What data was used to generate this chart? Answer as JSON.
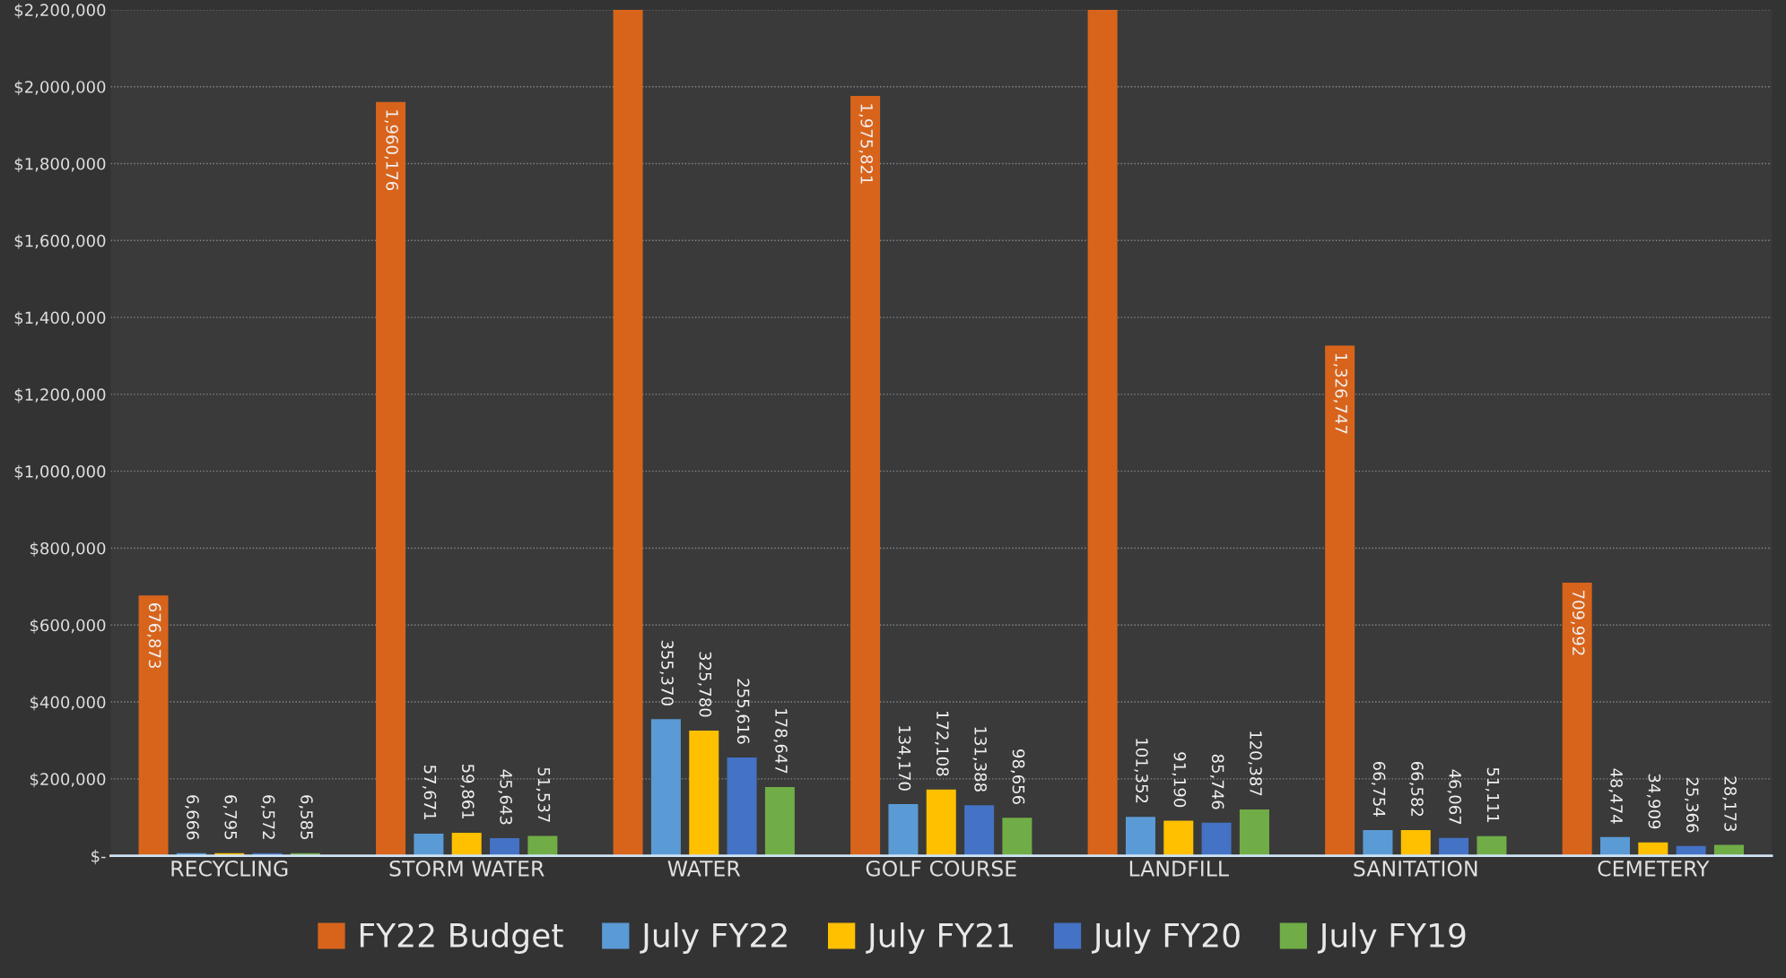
{
  "chart_data": {
    "type": "bar",
    "categories": [
      "RECYCLING",
      "STORM WATER",
      "WATER",
      "GOLF COURSE",
      "LANDFILL",
      "SANITATION",
      "CEMETERY"
    ],
    "series": [
      {
        "name": "FY22 Budget",
        "color": "#d8641c",
        "values": [
          676873,
          1960176,
          2200000,
          1975821,
          2200000,
          1326747,
          709992
        ],
        "value_labels": [
          "676,873",
          "1,960,176",
          null,
          "1,975,821",
          null,
          "1,326,747",
          "709,992"
        ]
      },
      {
        "name": "July FY22",
        "color": "#5b9bd5",
        "values": [
          6666,
          57671,
          355370,
          134170,
          101352,
          66754,
          48474
        ],
        "value_labels": [
          "6,666",
          "57,671",
          "355,370",
          "134,170",
          "101,352",
          "66,754",
          "48,474"
        ]
      },
      {
        "name": "July FY21",
        "color": "#ffc000",
        "values": [
          6795,
          59861,
          325780,
          172108,
          91190,
          66582,
          34909
        ],
        "value_labels": [
          "6,795",
          "59,861",
          "325,780",
          "172,108",
          "91,190",
          "66,582",
          "34,909"
        ]
      },
      {
        "name": "July FY20",
        "color": "#4472c4",
        "values": [
          6572,
          45643,
          255616,
          131388,
          85746,
          46067,
          25366
        ],
        "value_labels": [
          "6,572",
          "45,643",
          "255,616",
          "131,388",
          "85,746",
          "46,067",
          "25,366"
        ]
      },
      {
        "name": "July FY19",
        "color": "#70ad47",
        "values": [
          6585,
          51537,
          178647,
          98656,
          120387,
          51111,
          28173
        ],
        "value_labels": [
          "6,585",
          "51,537",
          "178,647",
          "98,656",
          "120,387",
          "51,111",
          "28,173"
        ]
      }
    ],
    "ylim": [
      0,
      2200000
    ],
    "yticks": [
      {
        "value": 0,
        "label": "$-"
      },
      {
        "value": 200000,
        "label": "$200,000"
      },
      {
        "value": 400000,
        "label": "$400,000"
      },
      {
        "value": 600000,
        "label": "$600,000"
      },
      {
        "value": 800000,
        "label": "$800,000"
      },
      {
        "value": 1000000,
        "label": "$1,000,000"
      },
      {
        "value": 1200000,
        "label": "$1,200,000"
      },
      {
        "value": 1400000,
        "label": "$1,400,000"
      },
      {
        "value": 1600000,
        "label": "$1,600,000"
      },
      {
        "value": 1800000,
        "label": "$1,800,000"
      },
      {
        "value": 2000000,
        "label": "$2,000,000"
      },
      {
        "value": 2200000,
        "label": "$2,200,000"
      }
    ],
    "grid": "y",
    "legend": "bottom"
  }
}
